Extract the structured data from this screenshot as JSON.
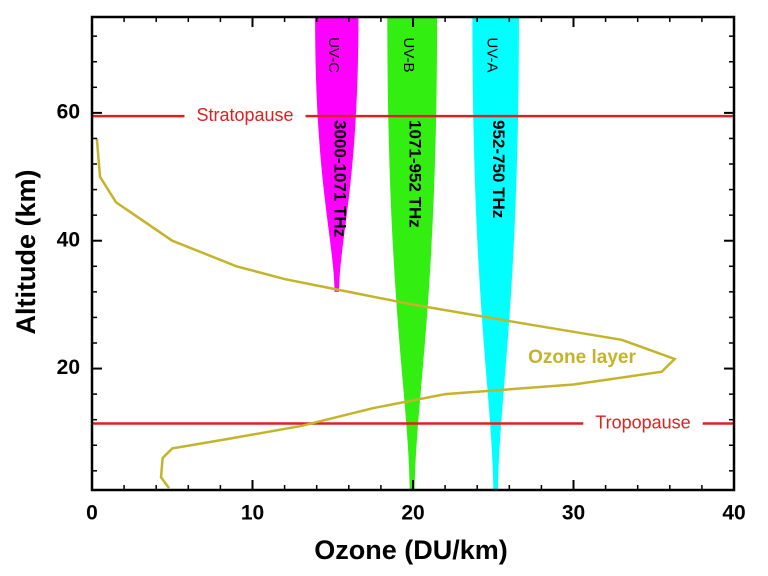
{
  "chart_data": {
    "type": "line",
    "xlabel": "Ozone (DU/km)",
    "ylabel": "Altitude (km)",
    "xlim": [
      0,
      40
    ],
    "ylim": [
      1,
      75
    ],
    "xticks": [
      0,
      10,
      20,
      30,
      40
    ],
    "yticks": [
      20,
      40,
      60
    ],
    "xminorticks": [
      2,
      4,
      6,
      8,
      12,
      14,
      16,
      18,
      22,
      24,
      26,
      28,
      32,
      34,
      36,
      38
    ],
    "yminorticks": [
      4,
      8,
      12,
      16,
      24,
      28,
      32,
      36,
      44,
      48,
      52,
      56,
      64,
      68,
      72
    ],
    "series": [
      {
        "name": "Ozone layer",
        "color": "#c4b42a",
        "x": [
          0.3,
          0.5,
          1.5,
          5,
          9,
          12,
          16,
          20,
          27,
          33,
          36.3,
          35.5,
          30,
          22,
          17.5,
          13,
          8.5,
          5,
          4.4,
          4.3,
          4.8
        ],
        "values": [
          56,
          50,
          46,
          40,
          36,
          34,
          32,
          30,
          27,
          24.5,
          21.5,
          19.5,
          17.5,
          16,
          13.8,
          11,
          9,
          7.5,
          6,
          3,
          1.3
        ]
      }
    ],
    "hlines": [
      {
        "name": "Stratopause",
        "value": 59.5,
        "color": "#e02020"
      },
      {
        "name": "Tropopause",
        "value": 11.4,
        "color": "#e02020"
      }
    ],
    "bands": [
      {
        "name": "UV-C",
        "range": "3000-1071 THz",
        "color": "#ff00ff",
        "x_left": 13.9,
        "x_right": 16.6,
        "bottom": 32
      },
      {
        "name": "UV-B",
        "range": "1071-952 THz",
        "color": "#33ee11",
        "x_left": 18.4,
        "x_right": 21.5,
        "bottom": 1
      },
      {
        "name": "UV-A",
        "range": "952-750 THz",
        "color": "#00ffff",
        "x_left": 23.7,
        "x_right": 26.6,
        "bottom": 1
      }
    ]
  }
}
